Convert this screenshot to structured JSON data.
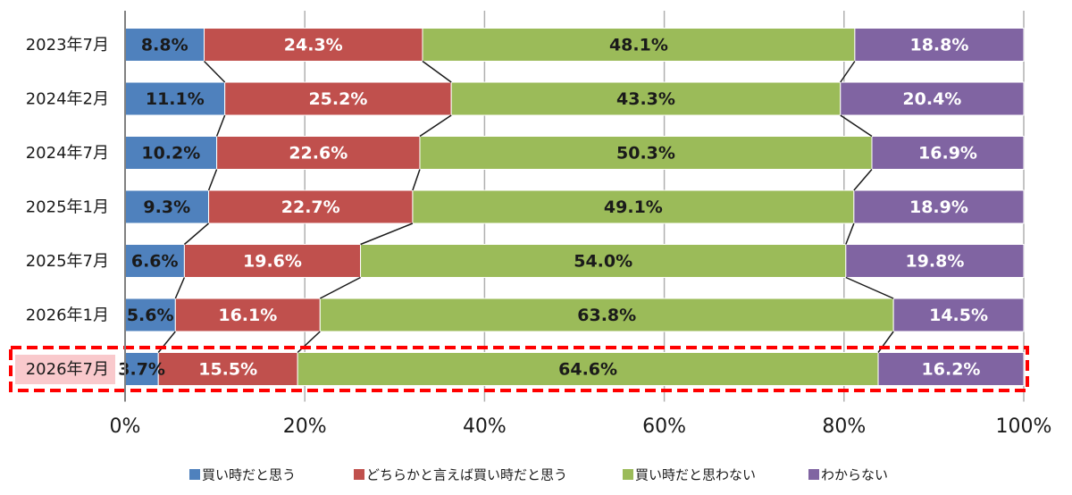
{
  "chart_data": {
    "type": "bar",
    "orientation": "horizontal",
    "stacked": "percent",
    "categories": [
      "2023年7月",
      "2024年2月",
      "2024年7月",
      "2025年1月",
      "2025年7月",
      "2026年1月",
      "2026年7月"
    ],
    "series": [
      {
        "name": "買い時だと思う",
        "color": "#4F81BD",
        "label_color": "#1a1a1a",
        "values": [
          8.8,
          11.1,
          10.2,
          9.3,
          6.6,
          5.6,
          3.7
        ]
      },
      {
        "name": "どちらかと言えば買い時だと思う",
        "color": "#C0504D",
        "label_color": "#ffffff",
        "values": [
          24.3,
          25.2,
          22.6,
          22.7,
          19.6,
          16.1,
          15.5
        ]
      },
      {
        "name": "買い時だと思わない",
        "color": "#9BBB59",
        "label_color": "#1a1a1a",
        "values": [
          48.1,
          43.3,
          50.3,
          49.1,
          54.0,
          63.8,
          64.6
        ]
      },
      {
        "name": "わからない",
        "color": "#8064A2",
        "label_color": "#ffffff",
        "values": [
          18.8,
          20.4,
          16.9,
          18.9,
          19.8,
          14.5,
          16.2
        ]
      }
    ],
    "data_labels": [
      [
        "8.8%",
        "24.3%",
        "48.1%",
        "18.8%"
      ],
      [
        "11.1%",
        "25.2%",
        "43.3%",
        "20.4%"
      ],
      [
        "10.2%",
        "22.6%",
        "50.3%",
        "16.9%"
      ],
      [
        "9.3%",
        "22.7%",
        "49.1%",
        "18.9%"
      ],
      [
        "6.6%",
        "19.6%",
        "54.0%",
        "19.8%"
      ],
      [
        "5.6%",
        "16.1%",
        "63.8%",
        "14.5%"
      ],
      [
        "3.7%",
        "15.5%",
        "64.6%",
        "16.2%"
      ]
    ],
    "x_ticks": [
      "0%",
      "20%",
      "40%",
      "60%",
      "80%",
      "100%"
    ],
    "xlim": [
      0,
      100
    ],
    "grid": true,
    "series_connector_lines": true,
    "legend_position": "bottom",
    "highlighted_category": "2026年7月",
    "highlight_color": "#FF0000",
    "highlight_fill": "#F9C9CC"
  }
}
